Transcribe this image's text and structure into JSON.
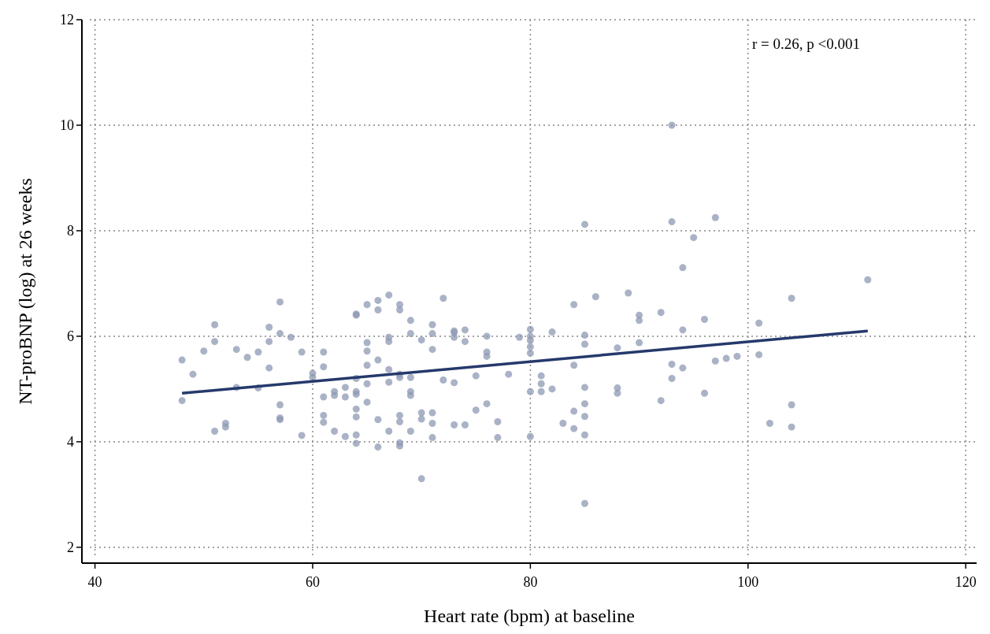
{
  "chart_data": {
    "type": "scatter",
    "xlabel": "Heart rate (bpm) at baseline",
    "ylabel": "NT-proBNP (log) at 26 weeks",
    "annotations": [
      "r = 0.26, p <0.001"
    ],
    "xlim": [
      38.8,
      121
    ],
    "ylim": [
      1.7,
      12
    ],
    "xticks": [
      40,
      60,
      80,
      100,
      120
    ],
    "yticks": [
      2,
      4,
      6,
      8,
      10,
      12
    ],
    "grid": true,
    "marker": "circle",
    "series": [
      {
        "color": "#8d98b3",
        "x": [
          48,
          48,
          49,
          50,
          51,
          51,
          51,
          52,
          52,
          53,
          53,
          54,
          55,
          55,
          56,
          56,
          56,
          57,
          57,
          57,
          57,
          57,
          58,
          59,
          59,
          60,
          60,
          61,
          61,
          61,
          61,
          61,
          62,
          62,
          62,
          63,
          63,
          63,
          64,
          64,
          64,
          64,
          64,
          64,
          64,
          64,
          64,
          65,
          65,
          65,
          65,
          65,
          65,
          66,
          66,
          66,
          66,
          66,
          67,
          67,
          67,
          67,
          67,
          67,
          68,
          68,
          68,
          68,
          68,
          68,
          68,
          68,
          69,
          69,
          69,
          69,
          69,
          69,
          70,
          70,
          70,
          70,
          71,
          71,
          71,
          71,
          71,
          71,
          72,
          72,
          73,
          73,
          73,
          73,
          73,
          74,
          74,
          74,
          75,
          75,
          76,
          76,
          76,
          76,
          77,
          77,
          78,
          79,
          80,
          80,
          80,
          80,
          80,
          80,
          80,
          81,
          81,
          81,
          82,
          82,
          83,
          84,
          84,
          84,
          84,
          85,
          85,
          85,
          85,
          85,
          85,
          85,
          85,
          86,
          88,
          88,
          88,
          89,
          90,
          90,
          90,
          92,
          92,
          93,
          93,
          93,
          93,
          94,
          94,
          94,
          95,
          96,
          96,
          97,
          97,
          98,
          99,
          101,
          101,
          102,
          104,
          104,
          104,
          111
        ],
        "values": [
          5.55,
          4.78,
          5.28,
          5.72,
          6.22,
          5.9,
          4.2,
          4.35,
          4.28,
          5.75,
          5.03,
          5.6,
          5.7,
          5.02,
          6.17,
          5.9,
          5.4,
          6.65,
          6.05,
          4.7,
          4.45,
          4.42,
          5.98,
          5.7,
          4.12,
          5.3,
          5.22,
          5.7,
          5.42,
          4.85,
          4.5,
          4.37,
          4.95,
          4.88,
          4.2,
          5.03,
          4.85,
          4.1,
          6.42,
          6.4,
          5.2,
          4.95,
          4.9,
          4.62,
          4.47,
          4.13,
          3.97,
          6.6,
          5.88,
          5.72,
          5.45,
          5.1,
          4.75,
          6.68,
          6.5,
          5.55,
          4.42,
          3.9,
          6.78,
          5.98,
          5.9,
          5.37,
          5.13,
          4.2,
          6.6,
          6.5,
          5.28,
          5.22,
          4.5,
          4.38,
          3.98,
          3.92,
          6.3,
          6.05,
          5.22,
          4.95,
          4.88,
          4.2,
          5.93,
          4.55,
          4.43,
          3.3,
          6.22,
          6.05,
          5.75,
          4.55,
          4.35,
          4.08,
          6.72,
          5.17,
          6.1,
          6.07,
          5.98,
          5.12,
          4.32,
          6.12,
          5.9,
          4.32,
          5.25,
          4.6,
          6.0,
          5.7,
          5.62,
          4.72,
          4.38,
          4.08,
          5.28,
          5.98,
          6.13,
          6.0,
          5.92,
          5.8,
          5.68,
          4.95,
          4.1,
          5.25,
          5.1,
          4.95,
          6.08,
          5.0,
          4.35,
          6.6,
          5.45,
          4.58,
          4.25,
          8.12,
          6.02,
          5.85,
          5.03,
          4.72,
          4.48,
          4.13,
          2.83,
          6.75,
          5.78,
          5.02,
          4.92,
          6.82,
          6.4,
          6.3,
          5.88,
          6.45,
          4.78,
          10.0,
          8.17,
          5.47,
          5.2,
          7.3,
          6.12,
          5.4,
          7.87,
          6.32,
          4.92,
          8.25,
          5.53,
          5.58,
          5.62,
          6.25,
          5.65,
          4.35,
          6.72,
          4.7,
          4.28,
          7.07
        ]
      },
      {
        "type": "line",
        "color": "#25396b",
        "x": [
          48,
          111
        ],
        "values": [
          4.92,
          6.1
        ],
        "marker": "none"
      }
    ]
  }
}
